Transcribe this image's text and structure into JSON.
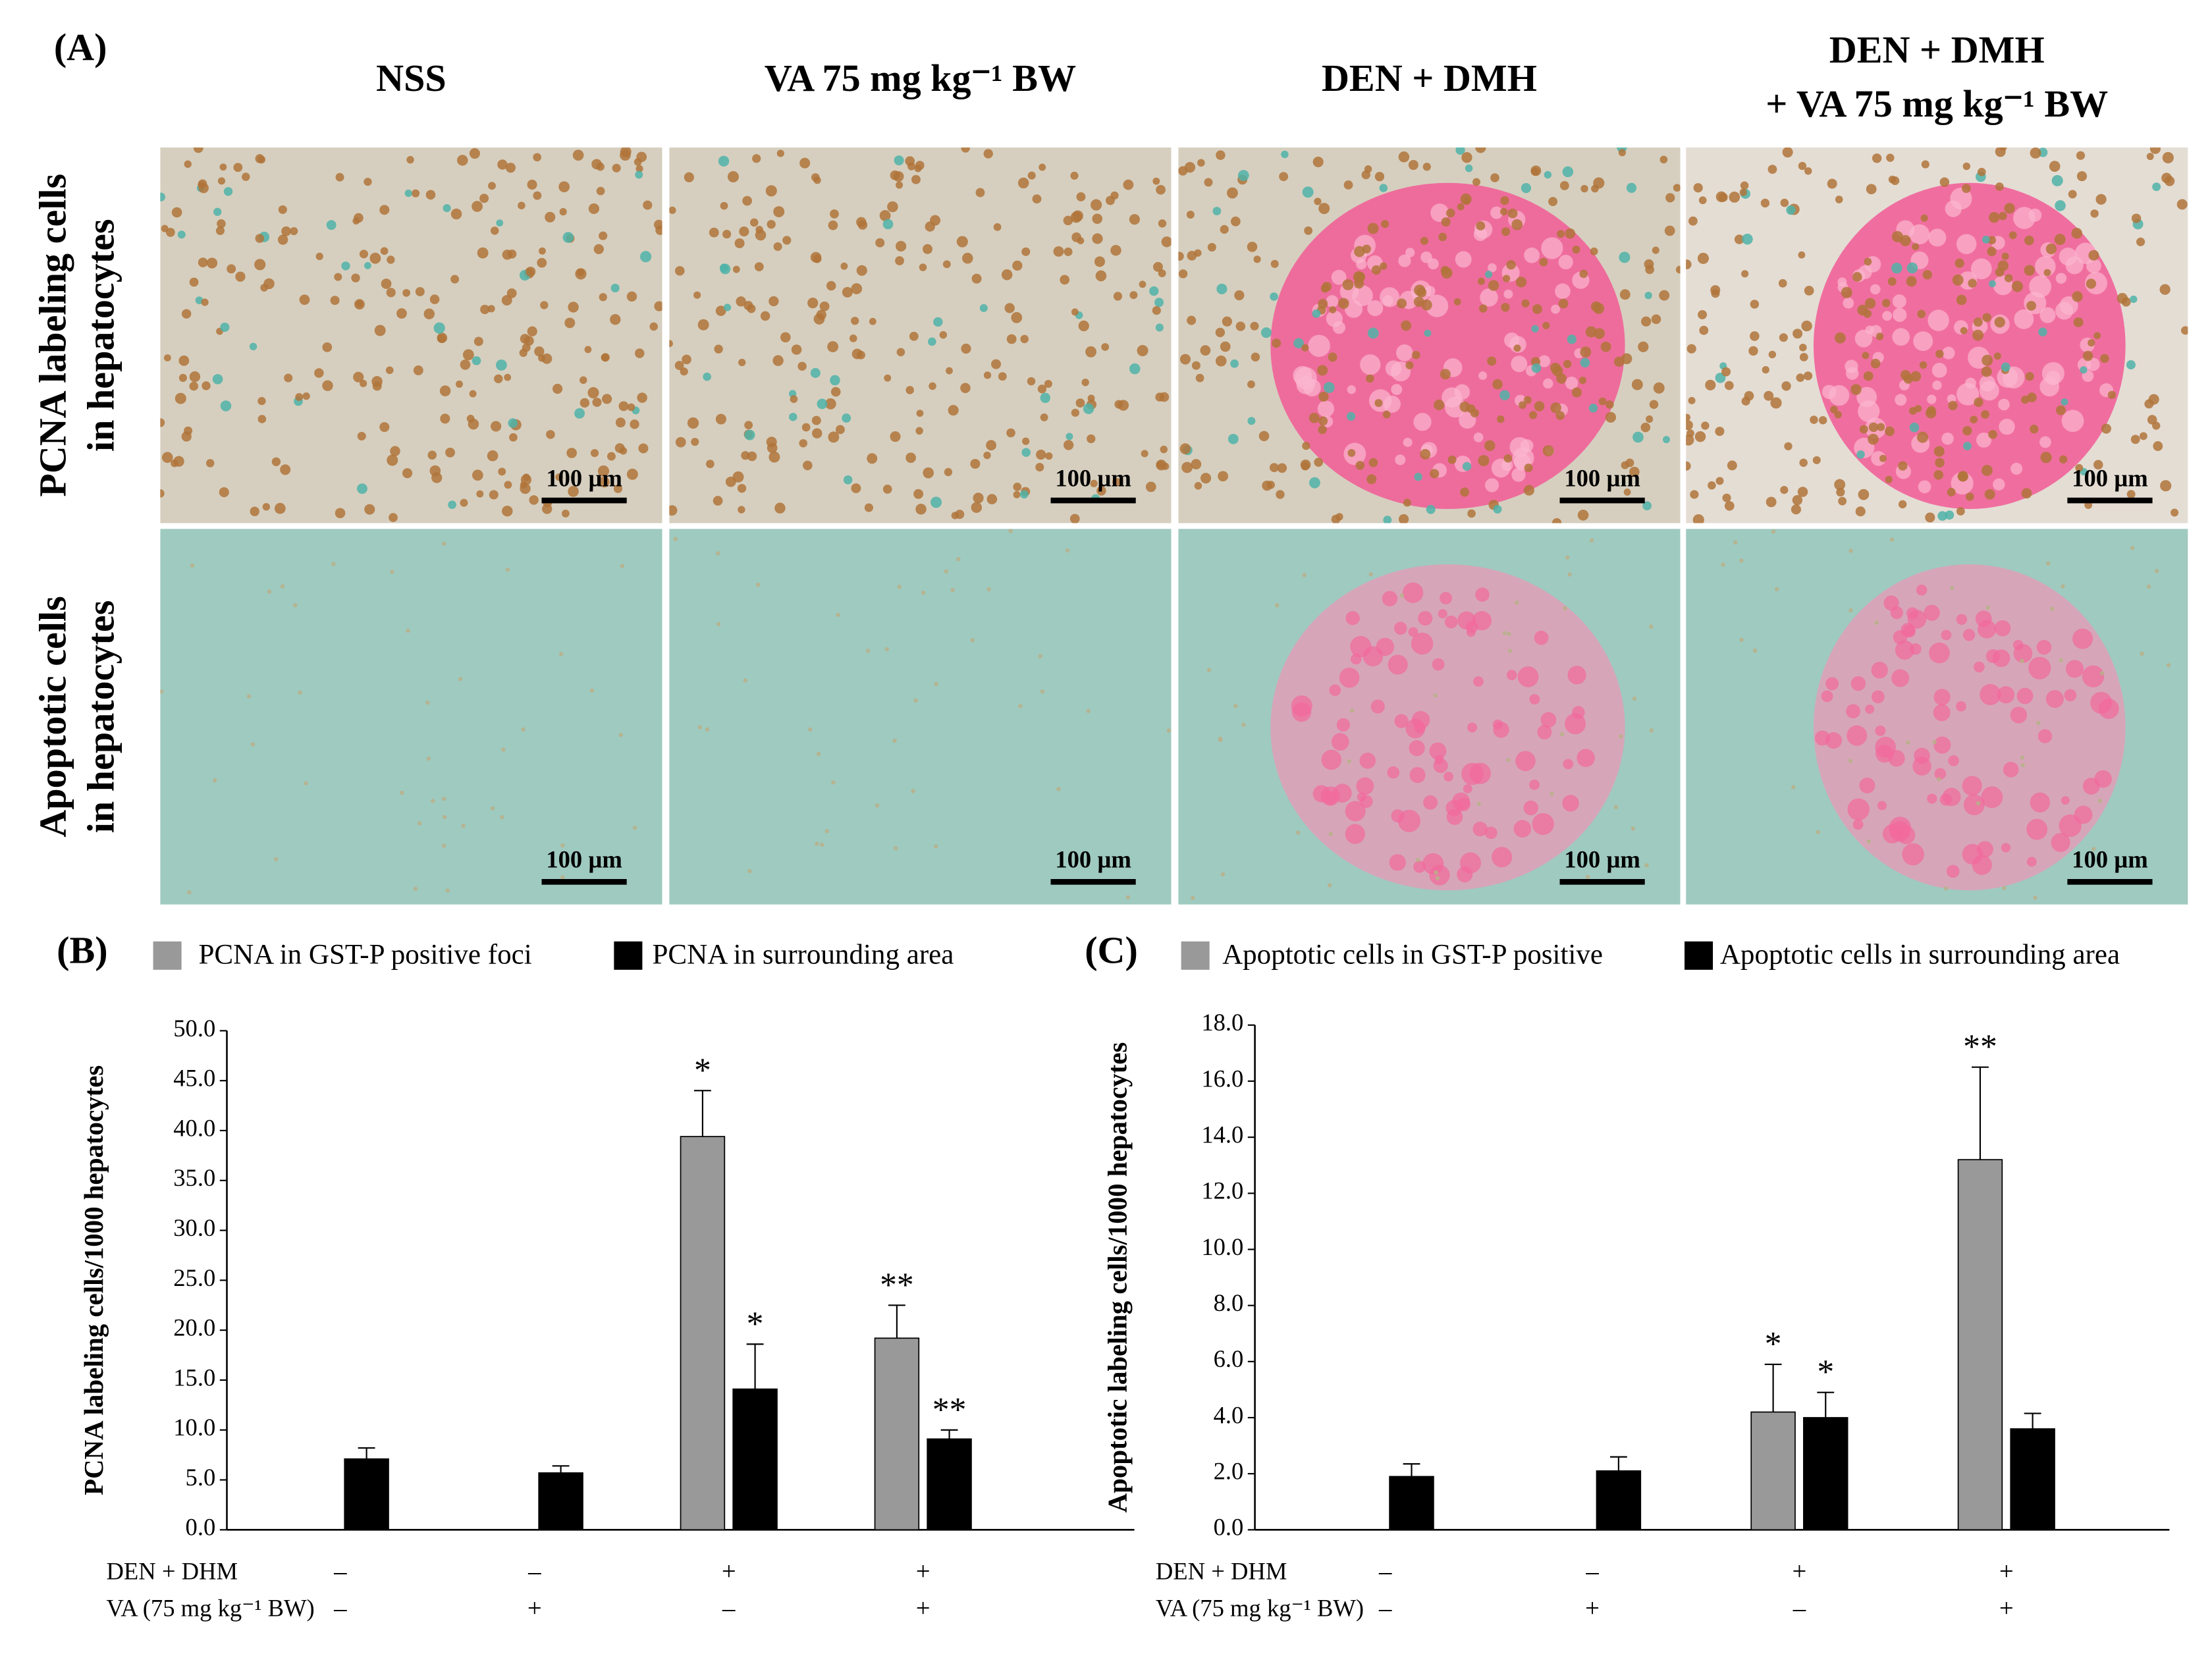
{
  "panel_a": {
    "label": "(A)",
    "columns": [
      [
        "NSS"
      ],
      [
        "VA 75 mg kg⁻¹ BW"
      ],
      [
        "DEN + DMH"
      ],
      [
        "DEN + DMH",
        "+ VA 75 mg kg⁻¹ BW"
      ]
    ],
    "rows": [
      [
        "PCNA labeling cells",
        "in hepatocytes"
      ],
      [
        "Apoptotic cells",
        "in hepatocytes"
      ]
    ],
    "scale_bar": "100 µm"
  },
  "chart_data": [
    {
      "type": "bar",
      "label": "(B)",
      "ylabel": "PCNA labeling cells/1000 hepatocytes",
      "categories": [
        null,
        null,
        null,
        null
      ],
      "series": [
        {
          "name": "PCNA in GST-P positive foci",
          "color": "#999999",
          "values": [
            null,
            null,
            39.4,
            19.2
          ],
          "errors": [
            null,
            null,
            4.6,
            3.3
          ],
          "annotations": [
            null,
            null,
            "*",
            "**"
          ]
        },
        {
          "name": "PCNA in surrounding area",
          "color": "#000000",
          "values": [
            7.1,
            5.7,
            14.1,
            9.1
          ],
          "errors": [
            1.1,
            0.7,
            4.5,
            0.9
          ],
          "annotations": [
            null,
            null,
            "*",
            "**"
          ]
        }
      ],
      "ylim": [
        0,
        50
      ],
      "yticks": [
        {
          "value": 0,
          "label": "0.0"
        },
        {
          "value": 5,
          "label": "5.0"
        },
        {
          "value": 10,
          "label": "10.0"
        },
        {
          "value": 15,
          "label": "15.0"
        },
        {
          "value": 20,
          "label": "20.0"
        },
        {
          "value": 25,
          "label": "25.0"
        },
        {
          "value": 30,
          "label": "30.0"
        },
        {
          "value": 35,
          "label": "35.0"
        },
        {
          "value": 40,
          "label": "40.0"
        },
        {
          "value": 45,
          "label": "45.0"
        },
        {
          "value": 50,
          "label": "50.0"
        }
      ],
      "treatments": [
        {
          "label": "DEN + DHM",
          "signs": [
            "–",
            "–",
            "+",
            "+"
          ]
        },
        {
          "label": "VA (75 mg kg⁻¹ BW)",
          "signs": [
            "–",
            "+",
            "–",
            "+"
          ]
        }
      ]
    },
    {
      "type": "bar",
      "label": "(C)",
      "ylabel": "Apoptotic labeling cells/1000 hepatocytes",
      "categories": [
        null,
        null,
        null,
        null
      ],
      "series": [
        {
          "name": "Apoptotic cells in GST-P positive",
          "color": "#999999",
          "values": [
            null,
            null,
            4.2,
            13.2
          ],
          "errors": [
            null,
            null,
            1.7,
            3.3
          ],
          "annotations": [
            null,
            null,
            "*",
            "**"
          ]
        },
        {
          "name": "Apoptotic cells in surrounding area",
          "color": "#000000",
          "values": [
            1.9,
            2.1,
            4.0,
            3.6
          ],
          "errors": [
            0.45,
            0.5,
            0.9,
            0.55
          ],
          "annotations": [
            null,
            null,
            "*",
            null
          ]
        }
      ],
      "ylim": [
        0,
        18
      ],
      "yticks": [
        {
          "value": 0,
          "label": "0.0"
        },
        {
          "value": 2,
          "label": "2.0"
        },
        {
          "value": 4,
          "label": "4.0"
        },
        {
          "value": 6,
          "label": "6.0"
        },
        {
          "value": 8,
          "label": "8.0"
        },
        {
          "value": 10,
          "label": "10.0"
        },
        {
          "value": 12,
          "label": "12.0"
        },
        {
          "value": 14,
          "label": "14.0"
        },
        {
          "value": 16,
          "label": "16.0"
        },
        {
          "value": 18,
          "label": "18.0"
        }
      ],
      "treatments": [
        {
          "label": "DEN + DHM",
          "signs": [
            "–",
            "–",
            "+",
            "+"
          ]
        },
        {
          "label": "VA (75 mg kg⁻¹ BW)",
          "signs": [
            "–",
            "+",
            "–",
            "+"
          ]
        }
      ]
    }
  ]
}
